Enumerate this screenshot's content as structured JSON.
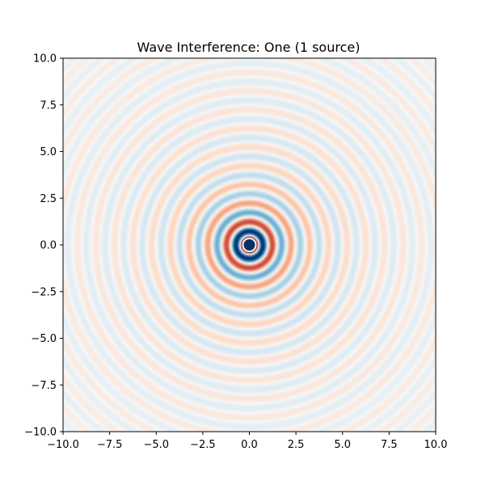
{
  "chart_data": {
    "type": "heatmap",
    "title": "Wave Interference: One (1 source)",
    "xlabel": "",
    "ylabel": "",
    "xlim": [
      -10,
      10
    ],
    "ylim": [
      -10,
      10
    ],
    "x_ticks": [
      -10.0,
      -7.5,
      -5.0,
      -2.5,
      0.0,
      2.5,
      5.0,
      7.5,
      10.0
    ],
    "y_ticks": [
      -10.0,
      -7.5,
      -5.0,
      -2.5,
      0.0,
      2.5,
      5.0,
      7.5,
      10.0
    ],
    "x_tick_labels": [
      "−10.0",
      "−7.5",
      "−5.0",
      "−2.5",
      "0.0",
      "2.5",
      "5.0",
      "7.5",
      "10.0"
    ],
    "y_tick_labels": [
      "−10.0",
      "−7.5",
      "−5.0",
      "−2.5",
      "0.0",
      "2.5",
      "5.0",
      "7.5",
      "10.0"
    ],
    "grid": false,
    "colormap": "RdBu",
    "sources": [
      {
        "x": 0.0,
        "y": 0.0
      }
    ],
    "wavelength": 1.0,
    "colors": {
      "red": "#67001f",
      "blue": "#053061",
      "center": "#f7f7f7"
    }
  }
}
